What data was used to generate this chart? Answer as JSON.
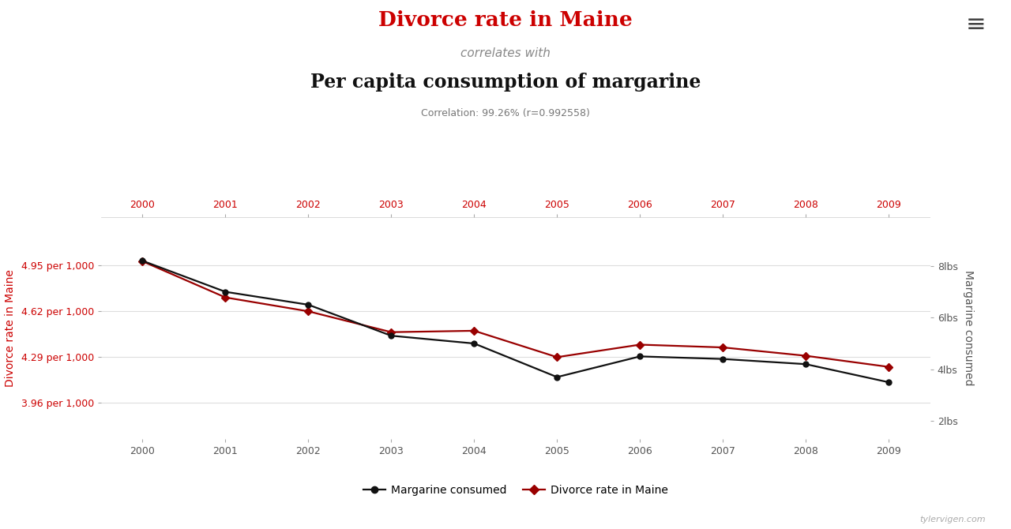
{
  "years": [
    2000,
    2001,
    2002,
    2003,
    2004,
    2005,
    2006,
    2007,
    2008,
    2009
  ],
  "divorce_rate": [
    4.98,
    4.72,
    4.62,
    4.47,
    4.48,
    4.29,
    4.38,
    4.36,
    4.3,
    4.22
  ],
  "margarine": [
    8.2,
    7.0,
    6.5,
    5.3,
    5.0,
    3.7,
    4.5,
    4.4,
    4.2,
    3.5
  ],
  "title_line1": "Divorce rate in Maine",
  "title_line2": "correlates with",
  "title_line3": "Per capita consumption of margarine",
  "correlation_text": "Correlation: 99.26% (r=0.992558)",
  "left_yticks": [
    3.96,
    4.29,
    4.62,
    4.95
  ],
  "left_ytick_labels": [
    "3.96 per 1,000",
    "4.29 per 1,000",
    "4.62 per 1,000",
    "4.95 per 1,000"
  ],
  "right_yticks": [
    2,
    4,
    6,
    8
  ],
  "right_ytick_labels": [
    "2lbs",
    "4lbs",
    "6lbs",
    "8lbs"
  ],
  "left_ylabel": "Divorce rate in Maine",
  "right_ylabel": "Margarine consumed",
  "ylim_left": [
    3.7,
    5.3
  ],
  "ylim_right": [
    1.3,
    9.9
  ],
  "divorce_color": "#990000",
  "margarine_color": "#111111",
  "title1_color": "#cc0000",
  "title3_color": "#111111",
  "title2_color": "#888888",
  "correlation_color": "#777777",
  "axis_label_color": "#cc0000",
  "background_color": "#ffffff",
  "grid_color": "#dddddd",
  "watermark": "tylervigen.com",
  "legend_margarine": "Margarine consumed",
  "legend_divorce": "Divorce rate in Maine"
}
